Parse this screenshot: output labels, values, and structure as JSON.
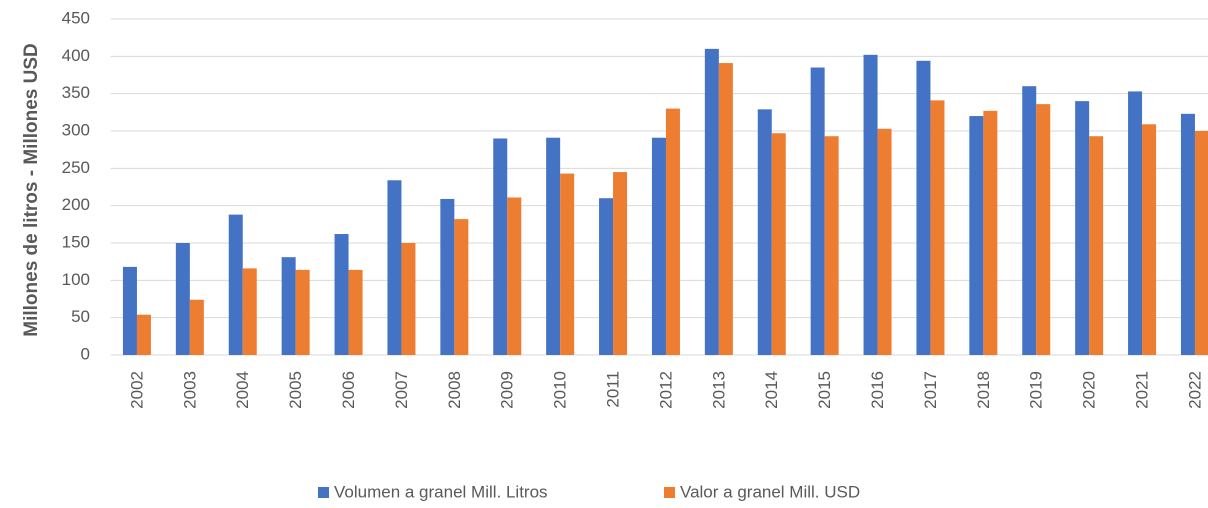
{
  "chart_data": {
    "type": "bar",
    "ylabel": "Millones de litros - Millones USD",
    "categories": [
      "2002",
      "2003",
      "2004",
      "2005",
      "2006",
      "2007",
      "2008",
      "2009",
      "2010",
      "2011",
      "2012",
      "2013",
      "2014",
      "2015",
      "2016",
      "2017",
      "2018",
      "2019",
      "2020",
      "2021",
      "2022"
    ],
    "series": [
      {
        "name": "Volumen a granel Mill. Litros",
        "color": "#4472c4",
        "values": [
          118,
          150,
          188,
          131,
          162,
          234,
          209,
          290,
          291,
          210,
          291,
          410,
          329,
          385,
          402,
          394,
          320,
          360,
          340,
          353,
          323
        ]
      },
      {
        "name": "Valor a granel Mill. USD",
        "color": "#ed7d31",
        "values": [
          54,
          74,
          116,
          114,
          114,
          150,
          182,
          211,
          243,
          245,
          330,
          391,
          297,
          293,
          303,
          341,
          327,
          336,
          293,
          309,
          300
        ]
      }
    ],
    "ylim": [
      0,
      450
    ],
    "yticks": [
      0,
      50,
      100,
      150,
      200,
      250,
      300,
      350,
      400,
      450
    ],
    "grid": true,
    "legend": "bottom"
  }
}
